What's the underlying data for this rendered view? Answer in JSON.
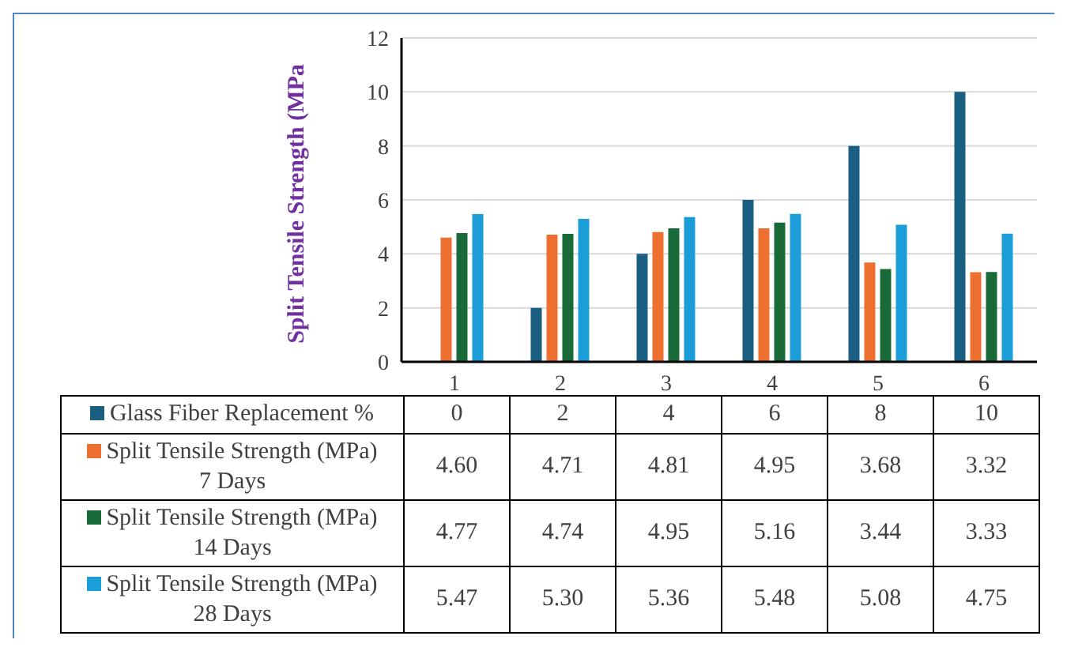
{
  "chart_data": {
    "type": "bar",
    "ylabel": "Split Tensile Strength (MPa",
    "categories": [
      "1",
      "2",
      "3",
      "4",
      "5",
      "6"
    ],
    "series": [
      {
        "name": "Glass Fiber Replacement %",
        "color": "#1a5f82",
        "values": [
          0,
          2,
          4,
          6,
          8,
          10
        ],
        "value_labels": [
          "0",
          "2",
          "4",
          "6",
          "8",
          "10"
        ]
      },
      {
        "name": "Split Tensile Strength (MPa) 7 Days",
        "color": "#ed7031",
        "values": [
          4.6,
          4.71,
          4.81,
          4.95,
          3.68,
          3.32
        ],
        "value_labels": [
          "4.60",
          "4.71",
          "4.81",
          "4.95",
          "3.68",
          "3.32"
        ]
      },
      {
        "name": "Split Tensile Strength (MPa) 14 Days",
        "color": "#186b38",
        "values": [
          4.77,
          4.74,
          4.95,
          5.16,
          3.44,
          3.33
        ],
        "value_labels": [
          "4.77",
          "4.74",
          "4.95",
          "5.16",
          "3.44",
          "3.33"
        ]
      },
      {
        "name": "Split Tensile Strength (MPa) 28 Days",
        "color": "#1b9ed8",
        "values": [
          5.47,
          5.3,
          5.36,
          5.48,
          5.08,
          4.75
        ],
        "value_labels": [
          "5.47",
          "5.30",
          "5.36",
          "5.48",
          "5.08",
          "4.75"
        ]
      }
    ],
    "ylim": [
      0,
      12
    ],
    "yticks": [
      0,
      2,
      4,
      6,
      8,
      10,
      12
    ],
    "grid": "y",
    "legend": "bottom"
  }
}
